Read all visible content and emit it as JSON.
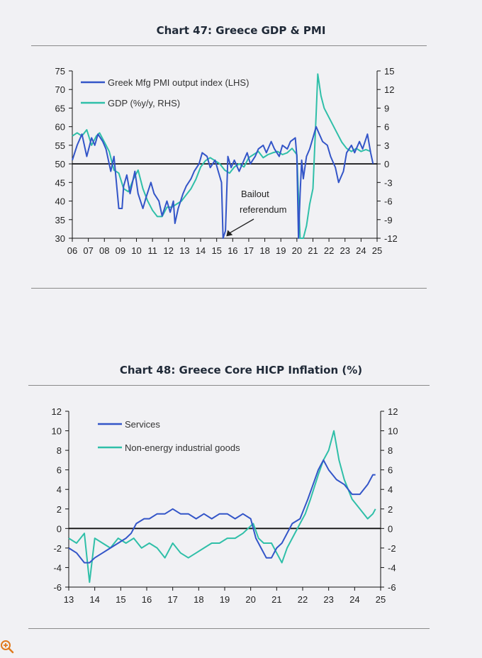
{
  "colors": {
    "pmi": "#3355c8",
    "gdp": "#2fbfa8",
    "services": "#3355c8",
    "neig": "#2fbfa8",
    "axis": "#111111"
  },
  "chart_data": [
    {
      "type": "line",
      "title": "Chart 47: Greece GDP & PMI",
      "x_tick_labels": [
        "06",
        "07",
        "08",
        "09",
        "10",
        "11",
        "12",
        "13",
        "14",
        "15",
        "16",
        "17",
        "18",
        "19",
        "20",
        "21",
        "22",
        "23",
        "24",
        "25"
      ],
      "x_range": [
        2006.0,
        2025.0
      ],
      "y_left": {
        "range": [
          30,
          75
        ],
        "ticks": [
          30,
          35,
          40,
          45,
          50,
          55,
          60,
          65,
          70,
          75
        ]
      },
      "y_right": {
        "range": [
          -12,
          15
        ],
        "ticks": [
          -12,
          -9,
          -6,
          -3,
          0,
          3,
          6,
          9,
          12,
          15
        ]
      },
      "legend_position": "top-left",
      "annotation": {
        "lines": [
          "Bailout",
          "referendum"
        ],
        "x": 2015.6,
        "y": 30.5
      },
      "series": [
        {
          "name": "Greek Mfg PMI output index (LHS)",
          "axis": "left",
          "x": [
            2006.0,
            2006.3,
            2006.6,
            2006.9,
            2007.2,
            2007.4,
            2007.6,
            2007.9,
            2008.1,
            2008.4,
            2008.6,
            2008.9,
            2009.1,
            2009.2,
            2009.4,
            2009.6,
            2009.9,
            2010.1,
            2010.4,
            2010.6,
            2010.9,
            2011.1,
            2011.4,
            2011.6,
            2011.9,
            2012.1,
            2012.3,
            2012.4,
            2012.6,
            2012.9,
            2013.1,
            2013.4,
            2013.6,
            2013.9,
            2014.1,
            2014.4,
            2014.6,
            2014.9,
            2015.1,
            2015.3,
            2015.4,
            2015.55,
            2015.7,
            2015.9,
            2016.1,
            2016.4,
            2016.6,
            2016.9,
            2017.1,
            2017.4,
            2017.6,
            2017.9,
            2018.1,
            2018.4,
            2018.6,
            2018.9,
            2019.1,
            2019.4,
            2019.6,
            2019.9,
            2020.0,
            2020.1,
            2020.2,
            2020.3,
            2020.4,
            2020.6,
            2020.8,
            2021.0,
            2021.2,
            2021.4,
            2021.6,
            2021.9,
            2022.1,
            2022.4,
            2022.6,
            2022.9,
            2023.1,
            2023.4,
            2023.6,
            2023.9,
            2024.1,
            2024.4,
            2024.6,
            2024.75
          ],
          "values": [
            51,
            55,
            58,
            52,
            57,
            55,
            58,
            56,
            54,
            48,
            52,
            38,
            38,
            44,
            47,
            42,
            48,
            42,
            38,
            41,
            45,
            42,
            40,
            36,
            40,
            37,
            40,
            34,
            38,
            42,
            44,
            46,
            48,
            50,
            53,
            52,
            49,
            51,
            48,
            45,
            30,
            32,
            52,
            49,
            51,
            48,
            50,
            53,
            50,
            52,
            54,
            55,
            53,
            56,
            54,
            52,
            55,
            54,
            56,
            57,
            52,
            30,
            42,
            51,
            46,
            52,
            54,
            57,
            60,
            58,
            56,
            55,
            52,
            49,
            45,
            48,
            53,
            55,
            53,
            56,
            54,
            58,
            53,
            50
          ]
        },
        {
          "name": "GDP (%y/y, RHS)",
          "axis": "right",
          "x": [
            2006.0,
            2006.3,
            2006.6,
            2006.9,
            2007.2,
            2007.5,
            2007.7,
            2008.0,
            2008.3,
            2008.6,
            2008.9,
            2009.2,
            2009.5,
            2009.8,
            2010.1,
            2010.4,
            2010.7,
            2011.0,
            2011.3,
            2011.6,
            2011.9,
            2012.2,
            2012.5,
            2012.8,
            2013.1,
            2013.4,
            2013.7,
            2014.0,
            2014.3,
            2014.6,
            2014.9,
            2015.2,
            2015.5,
            2015.8,
            2016.1,
            2016.4,
            2016.7,
            2017.0,
            2017.3,
            2017.6,
            2017.9,
            2018.2,
            2018.5,
            2018.8,
            2019.1,
            2019.4,
            2019.7,
            2020.0,
            2020.2,
            2020.4,
            2020.6,
            2020.8,
            2021.0,
            2021.2,
            2021.3,
            2021.5,
            2021.7,
            2021.9,
            2022.2,
            2022.5,
            2022.8,
            2023.1,
            2023.4,
            2023.7,
            2024.0,
            2024.3,
            2024.6
          ],
          "values": [
            4.5,
            5.0,
            4.5,
            5.5,
            3.0,
            4.5,
            5.0,
            3.5,
            2.0,
            -1.0,
            -1.5,
            -4.0,
            -4.5,
            -2.5,
            -1.0,
            -4.0,
            -6.0,
            -7.5,
            -8.5,
            -8.5,
            -7.0,
            -7.0,
            -6.5,
            -6.0,
            -5.0,
            -4.0,
            -2.5,
            -0.5,
            0.5,
            1.0,
            0.5,
            0.0,
            -1.0,
            -1.5,
            -0.5,
            0.0,
            -0.5,
            1.0,
            1.5,
            2.0,
            1.0,
            1.5,
            1.8,
            2.0,
            1.5,
            1.8,
            2.5,
            1.5,
            -12.0,
            -12.0,
            -10.0,
            -6.5,
            -4.0,
            8.0,
            14.5,
            11.0,
            9.0,
            8.0,
            6.5,
            5.0,
            3.5,
            2.5,
            2.0,
            2.5,
            2.0,
            2.3,
            2.0
          ]
        }
      ]
    },
    {
      "type": "line",
      "title": "Chart 48: Greece Core HICP Inflation (%)",
      "x_tick_labels": [
        "13",
        "14",
        "15",
        "16",
        "17",
        "18",
        "19",
        "20",
        "21",
        "22",
        "23",
        "24",
        "25"
      ],
      "x_range": [
        2013.0,
        2025.0
      ],
      "y_left": {
        "range": [
          -6,
          12
        ],
        "ticks": [
          -6,
          -4,
          -2,
          0,
          2,
          4,
          6,
          8,
          10,
          12
        ]
      },
      "y_right": {
        "range": [
          -6,
          12
        ],
        "ticks": [
          -6,
          -4,
          -2,
          0,
          2,
          4,
          6,
          8,
          10,
          12
        ]
      },
      "legend_position": "top-left",
      "series": [
        {
          "name": "Services",
          "x": [
            2013.0,
            2013.3,
            2013.6,
            2013.8,
            2014.0,
            2014.3,
            2014.6,
            2014.9,
            2015.2,
            2015.4,
            2015.6,
            2015.9,
            2016.1,
            2016.4,
            2016.7,
            2017.0,
            2017.3,
            2017.6,
            2017.9,
            2018.2,
            2018.5,
            2018.8,
            2019.1,
            2019.4,
            2019.7,
            2020.0,
            2020.2,
            2020.4,
            2020.6,
            2020.8,
            2021.0,
            2021.2,
            2021.4,
            2021.6,
            2021.9,
            2022.2,
            2022.4,
            2022.6,
            2022.8,
            2023.0,
            2023.3,
            2023.6,
            2023.9,
            2024.2,
            2024.5,
            2024.7,
            2024.8
          ],
          "values": [
            -2.0,
            -2.5,
            -3.5,
            -3.5,
            -3.0,
            -2.5,
            -2.0,
            -1.5,
            -1.0,
            -0.5,
            0.5,
            1.0,
            1.0,
            1.5,
            1.5,
            2.0,
            1.5,
            1.5,
            1.0,
            1.5,
            1.0,
            1.5,
            1.5,
            1.0,
            1.5,
            1.0,
            -1.0,
            -2.0,
            -3.0,
            -3.0,
            -2.0,
            -1.5,
            -0.5,
            0.5,
            1.0,
            3.0,
            4.5,
            6.0,
            7.0,
            6.0,
            5.0,
            4.5,
            3.5,
            3.5,
            4.5,
            5.5,
            5.5
          ]
        },
        {
          "name": "Non-energy industrial goods",
          "x": [
            2013.0,
            2013.3,
            2013.6,
            2013.8,
            2014.0,
            2014.3,
            2014.6,
            2014.9,
            2015.2,
            2015.5,
            2015.8,
            2016.1,
            2016.4,
            2016.7,
            2017.0,
            2017.3,
            2017.6,
            2017.9,
            2018.2,
            2018.5,
            2018.8,
            2019.1,
            2019.4,
            2019.7,
            2019.9,
            2020.1,
            2020.3,
            2020.5,
            2020.8,
            2021.0,
            2021.2,
            2021.4,
            2021.6,
            2021.9,
            2022.1,
            2022.3,
            2022.6,
            2022.8,
            2023.0,
            2023.2,
            2023.4,
            2023.6,
            2023.9,
            2024.2,
            2024.5,
            2024.7,
            2024.8
          ],
          "values": [
            -1.0,
            -1.5,
            -0.5,
            -5.5,
            -1.0,
            -1.5,
            -2.0,
            -1.0,
            -1.5,
            -1.0,
            -2.0,
            -1.5,
            -2.0,
            -3.0,
            -1.5,
            -2.5,
            -3.0,
            -2.5,
            -2.0,
            -1.5,
            -1.5,
            -1.0,
            -1.0,
            -0.5,
            0.0,
            0.5,
            -1.0,
            -1.5,
            -1.5,
            -2.5,
            -3.5,
            -2.0,
            -1.0,
            0.5,
            1.5,
            3.0,
            5.5,
            7.0,
            8.0,
            10.0,
            7.0,
            5.0,
            3.0,
            2.0,
            1.0,
            1.5,
            2.0
          ]
        }
      ]
    }
  ]
}
